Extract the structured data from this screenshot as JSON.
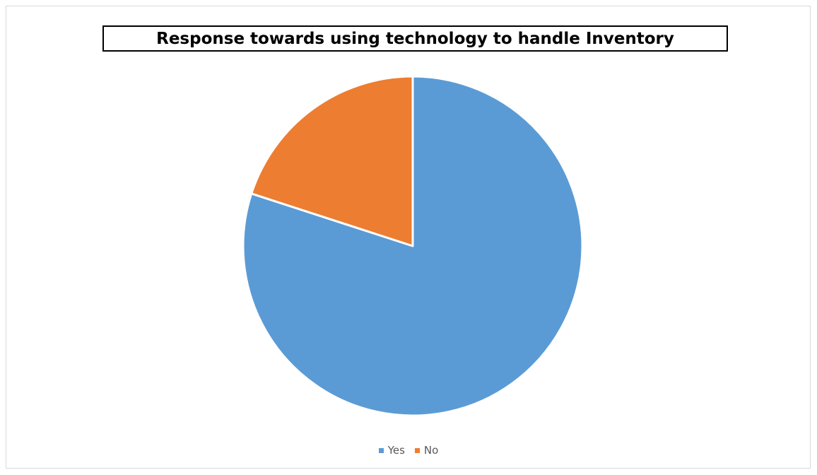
{
  "chart_data": {
    "type": "pie",
    "title": "Response towards using technology to handle Inventory",
    "categories": [
      "Yes",
      "No"
    ],
    "values": [
      80,
      20
    ],
    "colors": [
      "#5b9bd5",
      "#ed7d31"
    ],
    "start_angle_deg": 0,
    "direction": "clockwise",
    "legend_position": "bottom",
    "slice_border_color": "#ffffff"
  }
}
